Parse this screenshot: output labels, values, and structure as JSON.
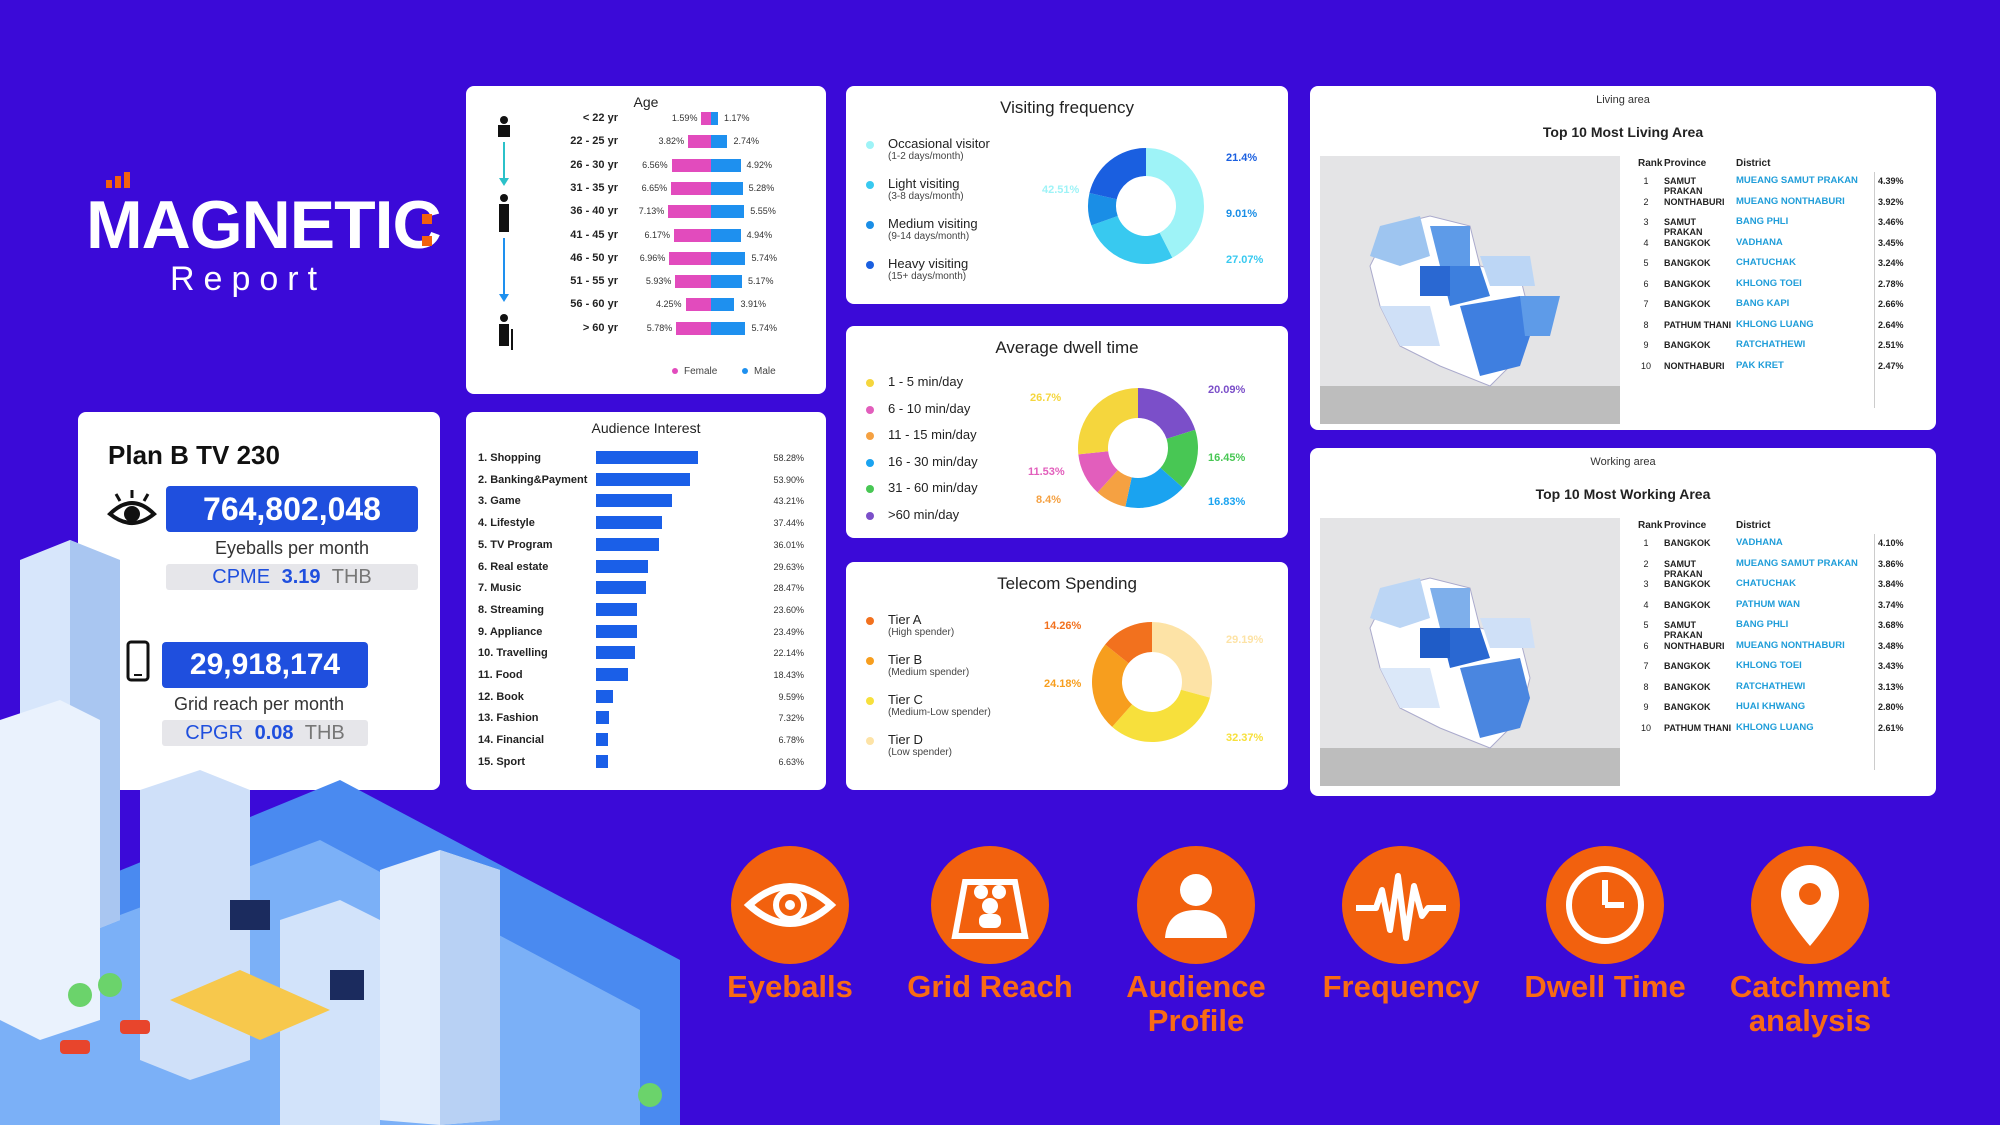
{
  "brand": {
    "name": "MAGNETIC",
    "sub": "Report"
  },
  "plan": {
    "name": "Plan B TV 230",
    "eyeballs": "764,802,048",
    "eyeballs_caption": "Eyeballs per month",
    "cpme_label": "CPME",
    "cpme_value": "3.19",
    "cpme_unit": "THB",
    "grid": "29,918,174",
    "grid_caption": "Grid reach per month",
    "cpgr_label": "CPGR",
    "cpgr_value": "0.08",
    "cpgr_unit": "THB"
  },
  "colors": {
    "bg": "#3b0ad8",
    "accent": "#f2610e",
    "blue": "#1f4fde",
    "female": "#e24bbd",
    "male": "#1e90ef"
  },
  "chart_data": [
    {
      "type": "bar",
      "title": "Age",
      "categories": [
        "< 22 yr",
        "22 - 25 yr",
        "26 - 30 yr",
        "31 - 35 yr",
        "36 - 40 yr",
        "41 - 45 yr",
        "46 - 50 yr",
        "51 - 55 yr",
        "56 - 60 yr",
        "> 60 yr"
      ],
      "series": [
        {
          "name": "Female",
          "values": [
            1.59,
            3.82,
            6.56,
            6.65,
            7.13,
            6.17,
            6.96,
            5.93,
            4.25,
            5.78
          ],
          "labels": [
            "1.59%",
            "3.82%",
            "6.56%",
            "6.65%",
            "7.13%",
            "6.17%",
            "6.96%",
            "5.93%",
            "4.25%",
            "5.78%"
          ]
        },
        {
          "name": "Male",
          "values": [
            1.17,
            2.74,
            4.92,
            5.28,
            5.55,
            4.94,
            5.74,
            5.17,
            3.91,
            5.74
          ],
          "labels": [
            "1.17%",
            "2.74%",
            "4.92%",
            "5.28%",
            "5.55%",
            "4.94%",
            "5.74%",
            "5.17%",
            "3.91%",
            "5.74%"
          ]
        }
      ],
      "legend": [
        "Female",
        "Male"
      ]
    },
    {
      "type": "bar",
      "title": "Audience Interest",
      "categories": [
        "1. Shopping",
        "2. Banking&Payment",
        "3. Game",
        "4. Lifestyle",
        "5. TV Program",
        "6. Real estate",
        "7. Music",
        "8. Streaming",
        "9. Appliance",
        "10. Travelling",
        "11. Food",
        "12. Book",
        "13. Fashion",
        "14. Financial",
        "15. Sport"
      ],
      "values": [
        58.28,
        53.9,
        43.21,
        37.44,
        36.01,
        29.63,
        28.47,
        23.6,
        23.49,
        22.14,
        18.43,
        9.59,
        7.32,
        6.78,
        6.63
      ],
      "labels": [
        "58.28%",
        "53.90%",
        "43.21%",
        "37.44%",
        "36.01%",
        "29.63%",
        "28.47%",
        "23.60%",
        "23.49%",
        "22.14%",
        "18.43%",
        "9.59%",
        "7.32%",
        "6.78%",
        "6.63%"
      ]
    },
    {
      "type": "pie",
      "title": "Visiting frequency",
      "categories": [
        "Occasional visitor",
        "Light visiting",
        "Medium visiting",
        "Heavy visiting"
      ],
      "subs": [
        "(1-2 days/month)",
        "(3-8 days/month)",
        "(9-14 days/month)",
        "(15+ days/month)"
      ],
      "values": [
        42.51,
        27.07,
        9.01,
        21.4
      ],
      "labels": [
        "42.51%",
        "27.07%",
        "9.01%",
        "21.4%"
      ],
      "colors": [
        "#9ef3f7",
        "#38c9f0",
        "#1a8ee6",
        "#1a5fe0"
      ]
    },
    {
      "type": "pie",
      "title": "Average dwell time",
      "categories": [
        "1 - 5 min/day",
        "6 - 10 min/day",
        "11 - 15 min/day",
        "16 - 30 min/day",
        "31 - 60 min/day",
        ">60 min/day"
      ],
      "values": [
        26.7,
        11.53,
        8.4,
        16.83,
        16.45,
        20.09
      ],
      "labels": [
        "26.7%",
        "11.53%",
        "8.4%",
        "16.83%",
        "16.45%",
        "20.09%"
      ],
      "colors": [
        "#f5d63d",
        "#e25ebc",
        "#f5a142",
        "#1aa3f0",
        "#48c754",
        "#7b4fc9"
      ]
    },
    {
      "type": "pie",
      "title": "Telecom Spending",
      "categories": [
        "Tier A",
        "Tier B",
        "Tier C",
        "Tier D"
      ],
      "subs": [
        "(High spender)",
        "(Medium spender)",
        "(Medium-Low spender)",
        "(Low spender)"
      ],
      "values": [
        14.26,
        24.18,
        32.37,
        29.19
      ],
      "labels": [
        "14.26%",
        "24.18%",
        "32.37%",
        "29.19%"
      ],
      "colors": [
        "#f2711e",
        "#f79e1e",
        "#f7e03c",
        "#fde3a6"
      ]
    }
  ],
  "living": {
    "kicker": "Living area",
    "title": "Top 10 Most Living Area",
    "headers": [
      "Rank",
      "Province",
      "District"
    ],
    "rows": [
      [
        "1",
        "SAMUT PRAKAN",
        "MUEANG SAMUT PRAKAN",
        "4.39%"
      ],
      [
        "2",
        "NONTHABURI",
        "MUEANG NONTHABURI",
        "3.92%"
      ],
      [
        "3",
        "SAMUT PRAKAN",
        "BANG PHLI",
        "3.46%"
      ],
      [
        "4",
        "BANGKOK",
        "VADHANA",
        "3.45%"
      ],
      [
        "5",
        "BANGKOK",
        "CHATUCHAK",
        "3.24%"
      ],
      [
        "6",
        "BANGKOK",
        "KHLONG TOEI",
        "2.78%"
      ],
      [
        "7",
        "BANGKOK",
        "BANG KAPI",
        "2.66%"
      ],
      [
        "8",
        "PATHUM THANI",
        "KHLONG LUANG",
        "2.64%"
      ],
      [
        "9",
        "BANGKOK",
        "RATCHATHEWI",
        "2.51%"
      ],
      [
        "10",
        "NONTHABURI",
        "PAK KRET",
        "2.47%"
      ]
    ]
  },
  "working": {
    "kicker": "Working area",
    "title": "Top 10 Most Working Area",
    "headers": [
      "Rank",
      "Province",
      "District"
    ],
    "rows": [
      [
        "1",
        "BANGKOK",
        "VADHANA",
        "4.10%"
      ],
      [
        "2",
        "SAMUT PRAKAN",
        "MUEANG SAMUT PRAKAN",
        "3.86%"
      ],
      [
        "3",
        "BANGKOK",
        "CHATUCHAK",
        "3.84%"
      ],
      [
        "4",
        "BANGKOK",
        "PATHUM WAN",
        "3.74%"
      ],
      [
        "5",
        "SAMUT PRAKAN",
        "BANG PHLI",
        "3.68%"
      ],
      [
        "6",
        "NONTHABURI",
        "MUEANG NONTHABURI",
        "3.48%"
      ],
      [
        "7",
        "BANGKOK",
        "KHLONG TOEI",
        "3.43%"
      ],
      [
        "8",
        "BANGKOK",
        "RATCHATHEWI",
        "3.13%"
      ],
      [
        "9",
        "BANGKOK",
        "HUAI KHWANG",
        "2.80%"
      ],
      [
        "10",
        "PATHUM THANI",
        "KHLONG LUANG",
        "2.61%"
      ]
    ]
  },
  "features": [
    {
      "label": "Eyeballs",
      "icon": "eye-icon"
    },
    {
      "label": "Grid Reach",
      "icon": "people-map-icon"
    },
    {
      "label": "Audience Profile",
      "icon": "person-icon"
    },
    {
      "label": "Frequency",
      "icon": "waveform-icon"
    },
    {
      "label": "Dwell Time",
      "icon": "clock-icon"
    },
    {
      "label": "Catchment analysis",
      "icon": "location-pin-icon"
    }
  ]
}
